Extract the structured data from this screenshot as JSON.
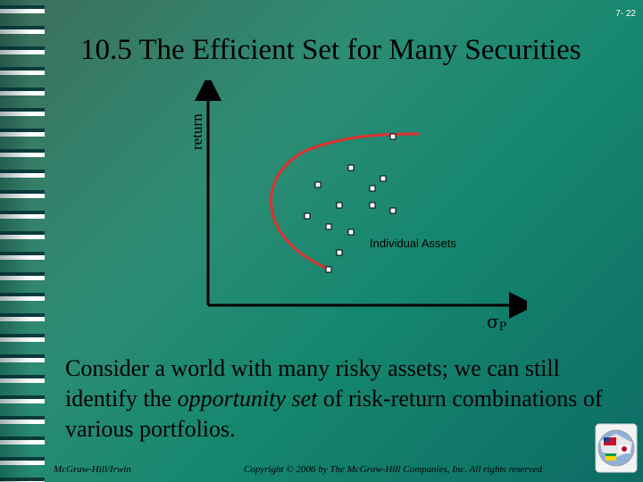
{
  "slide_number": "7- 22",
  "title": "10.5 The Efficient Set for Many Securities",
  "diagram": {
    "y_axis_label": "return",
    "x_axis_symbol": "σ",
    "x_axis_subscript": "P",
    "points_label": "Individual Assets",
    "frontier_color": "#e03030"
  },
  "body": {
    "text_part1": "Consider a world with many risky assets; we can still identify the ",
    "text_emphasis": "opportunity set",
    "text_part2": " of risk-return combinations of various portfolios."
  },
  "footer": {
    "left": "McGraw-Hill/Irwin",
    "right": "Copyright © 2006 by The McGraw-Hill Companies, Inc. All rights reserved"
  },
  "logo_icon": "flag-globe-icon"
}
